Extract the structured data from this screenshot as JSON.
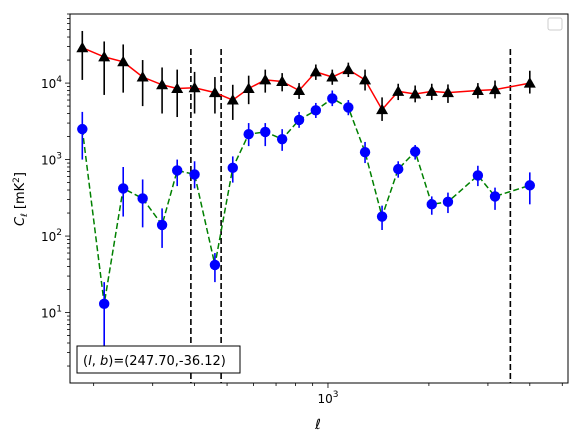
{
  "chart_data": {
    "type": "scatter",
    "title": "",
    "xlabel": "ℓ",
    "ylabel_main": "C",
    "ylabel_sub": "ℓ",
    "ylabel_unit": "  [mK",
    "ylabel_unit_sup": "2",
    "ylabel_unit_end": "]",
    "x_scale": "log",
    "y_scale": "log",
    "xlim": [
      170,
      5200
    ],
    "ylim": [
      1.2,
      80000
    ],
    "x_tick_labels": [
      {
        "base": "10",
        "exp": "3",
        "value": 1000
      }
    ],
    "y_tick_labels": [
      {
        "base": "10",
        "exp": "1",
        "value": 10
      },
      {
        "base": "10",
        "exp": "2",
        "value": 100
      },
      {
        "base": "10",
        "exp": "3",
        "value": 1000
      },
      {
        "base": "10",
        "exp": "4",
        "value": 10000
      }
    ],
    "grid": false,
    "legend": {
      "placement": "top-right",
      "entries": []
    },
    "annotation": "(l, b)=(247.70,-36.12)",
    "annotation_parts": {
      "lb_open": "(",
      "l": "l",
      "comma": ", ",
      "b": "b",
      "lb_close": ")",
      "coords": "=(247.70,-36.12)"
    },
    "vlines": [
      {
        "x": 390,
        "color": "#000000",
        "style": "dashed"
      },
      {
        "x": 480,
        "color": "#000000",
        "style": "dashed"
      },
      {
        "x": 3500,
        "color": "#000000",
        "style": "dashed"
      }
    ],
    "series": [
      {
        "marker": "triangle",
        "color": "#000000",
        "line_color": "#ff0000",
        "line_style": "solid",
        "points": [
          {
            "x": 185,
            "y": 29000,
            "lo": 11000,
            "hi": 48000
          },
          {
            "x": 215,
            "y": 22000,
            "lo": 7000,
            "hi": 35000
          },
          {
            "x": 245,
            "y": 19000,
            "lo": 7500,
            "hi": 32000
          },
          {
            "x": 280,
            "y": 12000,
            "lo": 5000,
            "hi": 20000
          },
          {
            "x": 320,
            "y": 9500,
            "lo": 4000,
            "hi": 16000
          },
          {
            "x": 355,
            "y": 8500,
            "lo": 3600,
            "hi": 15000
          },
          {
            "x": 400,
            "y": 8700,
            "lo": 4000,
            "hi": 14000
          },
          {
            "x": 460,
            "y": 7500,
            "lo": 4000,
            "hi": 12000
          },
          {
            "x": 520,
            "y": 6000,
            "lo": 3300,
            "hi": 9500
          },
          {
            "x": 580,
            "y": 8500,
            "lo": 5300,
            "hi": 12500
          },
          {
            "x": 650,
            "y": 11000,
            "lo": 7500,
            "hi": 15000
          },
          {
            "x": 730,
            "y": 10500,
            "lo": 7800,
            "hi": 13500
          },
          {
            "x": 820,
            "y": 8000,
            "lo": 6200,
            "hi": 10000
          },
          {
            "x": 920,
            "y": 14000,
            "lo": 11000,
            "hi": 17500
          },
          {
            "x": 1030,
            "y": 12000,
            "lo": 9500,
            "hi": 15000
          },
          {
            "x": 1150,
            "y": 15000,
            "lo": 12000,
            "hi": 18500
          },
          {
            "x": 1290,
            "y": 11000,
            "lo": 8000,
            "hi": 15000
          },
          {
            "x": 1450,
            "y": 4500,
            "lo": 3200,
            "hi": 6500
          },
          {
            "x": 1620,
            "y": 7800,
            "lo": 6000,
            "hi": 9800
          },
          {
            "x": 1820,
            "y": 7200,
            "lo": 5600,
            "hi": 9300
          },
          {
            "x": 2040,
            "y": 7800,
            "lo": 6000,
            "hi": 9800
          },
          {
            "x": 2280,
            "y": 7500,
            "lo": 5500,
            "hi": 9600
          },
          {
            "x": 2800,
            "y": 8000,
            "lo": 6300,
            "hi": 10000
          },
          {
            "x": 3150,
            "y": 8200,
            "lo": 6300,
            "hi": 10800
          },
          {
            "x": 4000,
            "y": 10000,
            "lo": 7300,
            "hi": 14500
          }
        ]
      },
      {
        "marker": "circle",
        "color": "#0000ff",
        "line_color": "#008000",
        "line_style": "dashed",
        "points": [
          {
            "x": 185,
            "y": 2500,
            "lo": 1000,
            "hi": 4200
          },
          {
            "x": 215,
            "y": 13,
            "lo": 2,
            "hi": 25
          },
          {
            "x": 245,
            "y": 420,
            "lo": 180,
            "hi": 800
          },
          {
            "x": 280,
            "y": 310,
            "lo": 130,
            "hi": 550
          },
          {
            "x": 320,
            "y": 140,
            "lo": 70,
            "hi": 230
          },
          {
            "x": 355,
            "y": 720,
            "lo": 450,
            "hi": 1000
          },
          {
            "x": 400,
            "y": 640,
            "lo": 420,
            "hi": 950
          },
          {
            "x": 460,
            "y": 42,
            "lo": 25,
            "hi": 60
          },
          {
            "x": 520,
            "y": 780,
            "lo": 500,
            "hi": 1100
          },
          {
            "x": 580,
            "y": 2150,
            "lo": 1500,
            "hi": 3000
          },
          {
            "x": 650,
            "y": 2300,
            "lo": 1500,
            "hi": 3000
          },
          {
            "x": 730,
            "y": 1850,
            "lo": 1300,
            "hi": 2500
          },
          {
            "x": 820,
            "y": 3300,
            "lo": 2600,
            "hi": 4200
          },
          {
            "x": 920,
            "y": 4400,
            "lo": 3500,
            "hi": 5500
          },
          {
            "x": 1030,
            "y": 6300,
            "lo": 5000,
            "hi": 8000
          },
          {
            "x": 1150,
            "y": 4800,
            "lo": 3800,
            "hi": 6000
          },
          {
            "x": 1290,
            "y": 1250,
            "lo": 900,
            "hi": 1700
          },
          {
            "x": 1450,
            "y": 180,
            "lo": 120,
            "hi": 250
          },
          {
            "x": 1620,
            "y": 750,
            "lo": 580,
            "hi": 950
          },
          {
            "x": 1820,
            "y": 1270,
            "lo": 1000,
            "hi": 1550
          },
          {
            "x": 2040,
            "y": 260,
            "lo": 190,
            "hi": 330
          },
          {
            "x": 2280,
            "y": 280,
            "lo": 200,
            "hi": 370
          },
          {
            "x": 2800,
            "y": 620,
            "lo": 450,
            "hi": 830
          },
          {
            "x": 3150,
            "y": 330,
            "lo": 220,
            "hi": 430
          },
          {
            "x": 4000,
            "y": 460,
            "lo": 260,
            "hi": 680
          }
        ]
      }
    ]
  }
}
